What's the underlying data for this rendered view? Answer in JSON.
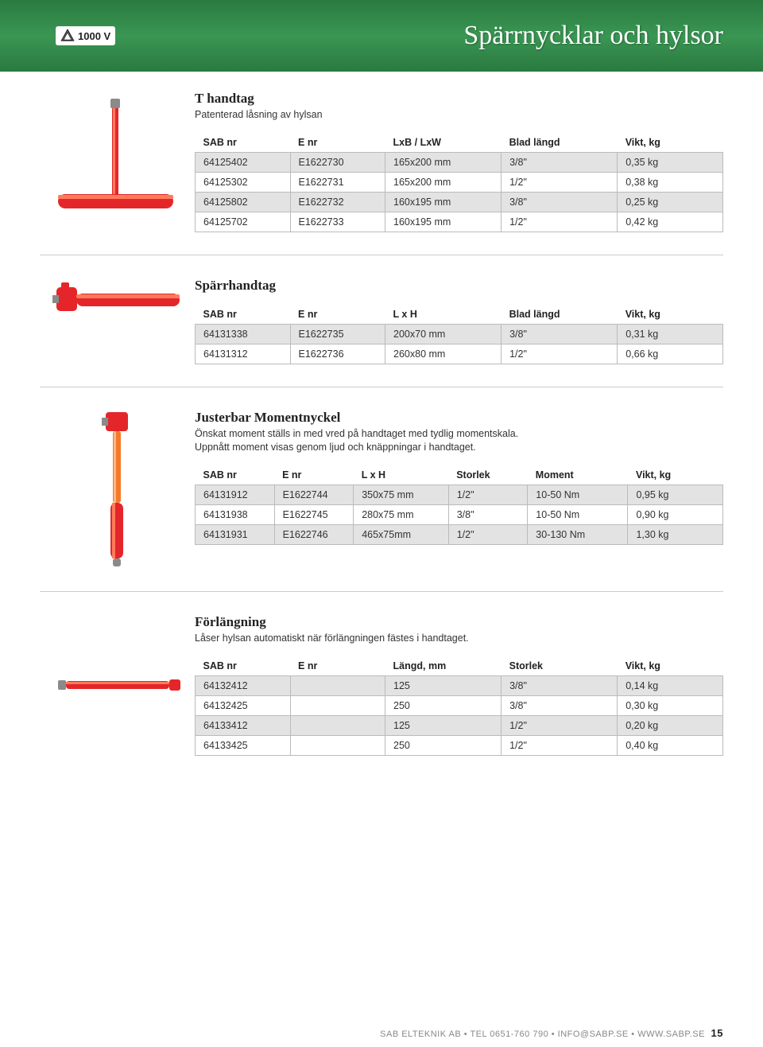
{
  "header": {
    "badge_text": "1000 V",
    "page_title": "Spärrnycklar och hylsor",
    "band_color": "#388d4f",
    "title_color": "#ffffff"
  },
  "sections": [
    {
      "title": "T handtag",
      "subtitle": "Patenterad låsning av hylsan",
      "columns": [
        "SAB nr",
        "E nr",
        "LxB / LxW",
        "Blad längd",
        "Vikt, kg"
      ],
      "rows": [
        [
          "64125402",
          "E1622730",
          "165x200 mm",
          "3/8\"",
          "0,35 kg"
        ],
        [
          "64125302",
          "E1622731",
          "165x200 mm",
          "1/2\"",
          "0,38 kg"
        ],
        [
          "64125802",
          "E1622732",
          "160x195 mm",
          "3/8\"",
          "0,25 kg"
        ],
        [
          "64125702",
          "E1622733",
          "160x195 mm",
          "1/2\"",
          "0,42 kg"
        ]
      ],
      "col_widths": [
        "18%",
        "18%",
        "22%",
        "22%",
        "20%"
      ]
    },
    {
      "title": "Spärrhandtag",
      "subtitle": "",
      "columns": [
        "SAB nr",
        "E nr",
        "L x H",
        "Blad längd",
        "Vikt, kg"
      ],
      "rows": [
        [
          "64131338",
          "E1622735",
          "200x70 mm",
          "3/8\"",
          "0,31 kg"
        ],
        [
          "64131312",
          "E1622736",
          "260x80 mm",
          "1/2\"",
          "0,66 kg"
        ]
      ],
      "col_widths": [
        "18%",
        "18%",
        "22%",
        "22%",
        "20%"
      ]
    },
    {
      "title": "Justerbar Momentnyckel",
      "subtitle": "Önskat moment ställs in med vred på handtaget med tydlig momentskala.\nUppnått moment visas genom ljud och knäppningar i handtaget.",
      "columns": [
        "SAB nr",
        "E nr",
        "L x H",
        "Storlek",
        "Moment",
        "Vikt, kg"
      ],
      "rows": [
        [
          "64131912",
          "E1622744",
          "350x75 mm",
          "1/2\"",
          "10-50 Nm",
          "0,95 kg"
        ],
        [
          "64131938",
          "E1622745",
          "280x75 mm",
          "3/8\"",
          "10-50 Nm",
          "0,90 kg"
        ],
        [
          "64131931",
          "E1622746",
          "465x75mm",
          "1/2\"",
          "30-130 Nm",
          "1,30 kg"
        ]
      ],
      "col_widths": [
        "15%",
        "15%",
        "18%",
        "15%",
        "19%",
        "18%"
      ]
    },
    {
      "title": "Förlängning",
      "subtitle": "Låser hylsan automatiskt när förlängningen fästes i handtaget.",
      "columns": [
        "SAB nr",
        "E nr",
        "Längd, mm",
        "Storlek",
        "Vikt, kg"
      ],
      "rows": [
        [
          "64132412",
          "",
          "125",
          "3/8\"",
          "0,14 kg"
        ],
        [
          "64132425",
          "",
          "250",
          "3/8\"",
          "0,30 kg"
        ],
        [
          "64133412",
          "",
          "125",
          "1/2\"",
          "0,20 kg"
        ],
        [
          "64133425",
          "",
          "250",
          "1/2\"",
          "0,40 kg"
        ]
      ],
      "col_widths": [
        "18%",
        "18%",
        "22%",
        "22%",
        "20%"
      ]
    }
  ],
  "table_style": {
    "odd_row_bg": "#e3e3e3",
    "even_row_bg": "#ffffff",
    "border_color": "#bbbbbb",
    "font_size": 12.5
  },
  "tool_colors": {
    "main_red": "#e4262a",
    "highlight": "#ff7a59",
    "metal": "#8a8a8a",
    "orange": "#f47a2b"
  },
  "footer": {
    "text": "SAB ELTEKNIK AB • TEL 0651-760 790 • INFO@SABP.SE • WWW.SABP.SE",
    "page_number": "15"
  }
}
